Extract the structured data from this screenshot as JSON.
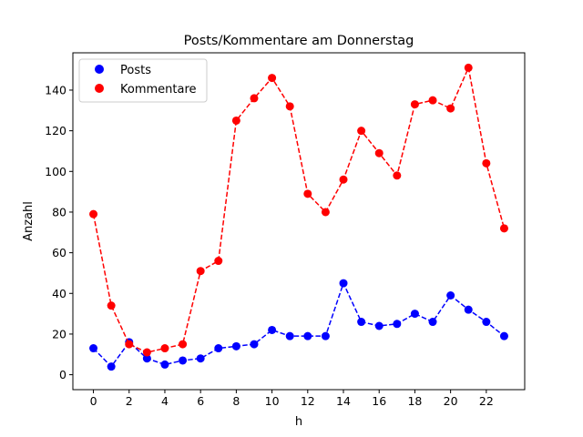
{
  "chart_data": {
    "type": "line",
    "title": "Posts/Kommentare am Donnerstag",
    "xlabel": "h",
    "ylabel": "Anzahl",
    "x": [
      0,
      1,
      2,
      3,
      4,
      5,
      6,
      7,
      8,
      9,
      10,
      11,
      12,
      13,
      14,
      15,
      16,
      17,
      18,
      19,
      20,
      21,
      22,
      23
    ],
    "xticks": [
      0,
      2,
      4,
      6,
      8,
      10,
      12,
      14,
      16,
      18,
      20,
      22
    ],
    "yticks": [
      0,
      20,
      40,
      60,
      80,
      100,
      120,
      140
    ],
    "xlim": [
      -1.15,
      24.15
    ],
    "ylim": [
      -7.35,
      158.35
    ],
    "grid": false,
    "legend_position": "upper left",
    "series": [
      {
        "name": "Posts",
        "color": "#0000ff",
        "line_style": "dashed",
        "marker": "circle",
        "values": [
          13,
          4,
          16,
          8,
          5,
          7,
          8,
          13,
          14,
          15,
          22,
          19,
          19,
          19,
          45,
          26,
          24,
          25,
          30,
          26,
          39,
          32,
          26,
          19
        ]
      },
      {
        "name": "Kommentare",
        "color": "#ff0000",
        "line_style": "dashed",
        "marker": "circle",
        "values": [
          79,
          34,
          15,
          11,
          13,
          15,
          51,
          56,
          125,
          136,
          146,
          132,
          89,
          80,
          96,
          120,
          109,
          98,
          133,
          135,
          131,
          151,
          104,
          72
        ]
      }
    ]
  }
}
